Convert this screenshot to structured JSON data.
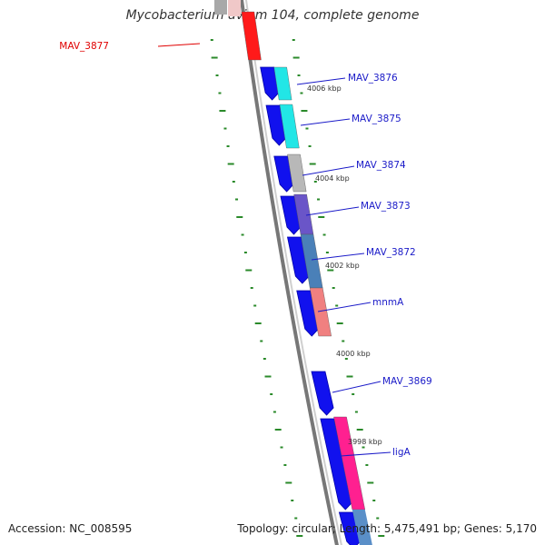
{
  "title": "Mycobacterium avium 104, complete genome",
  "footer": {
    "accession": "Accession: NC_008595",
    "summary": "Topology: circular; Length: 5,475,491 bp; Genes: 5,170"
  },
  "colors": {
    "backbone": "#777777",
    "tick": "#2a8a2a",
    "gene_arrow": "#1111ee",
    "label_line": "#1a1ac8",
    "label_highlight": "#e00000"
  },
  "kbp_labels": [
    "4006 kbp",
    "4004 kbp",
    "4002 kbp",
    "4000 kbp",
    "3998 kbp"
  ],
  "genes": [
    {
      "name": "MAV_3877",
      "color": "#ff1a1a",
      "highlight": true
    },
    {
      "name": "MAV_3876",
      "color": "#22e6e6"
    },
    {
      "name": "MAV_3875",
      "color": "#22e6e6"
    },
    {
      "name": "MAV_3874",
      "color": "#b8b8b8"
    },
    {
      "name": "MAV_3873",
      "color": "#6a55c8"
    },
    {
      "name": "MAV_3872",
      "color": "#4a80b8"
    },
    {
      "name": "mnmA",
      "color": "#f08080"
    },
    {
      "name": "MAV_3869",
      "color": ""
    },
    {
      "name": "ligA",
      "color": "#ff2090"
    }
  ]
}
